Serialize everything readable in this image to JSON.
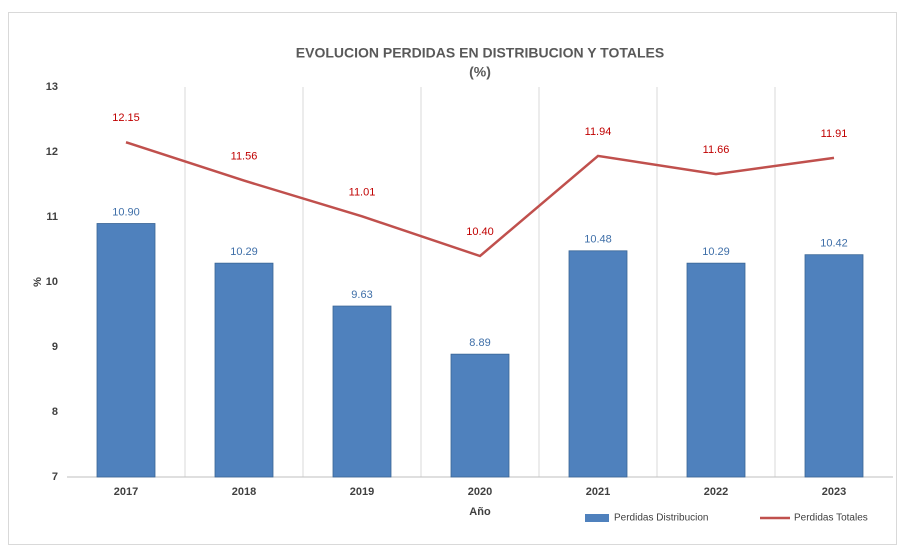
{
  "chart_data": {
    "type": "combo",
    "title": "EVOLUCION PERDIDAS EN DISTRIBUCION Y TOTALES",
    "subtitle": "(%)",
    "x_label": "Año",
    "y_label": "%",
    "categories": [
      "2017",
      "2018",
      "2019",
      "2020",
      "2021",
      "2022",
      "2023"
    ],
    "series": [
      {
        "name": "Perdidas Distribucion",
        "type": "bar",
        "color": "#4f81bd",
        "label_color": "#3f6fa8",
        "values": [
          10.9,
          10.29,
          9.63,
          8.89,
          10.48,
          10.29,
          10.42
        ],
        "value_labels": [
          "10.90",
          "10.29",
          "9.63",
          "8.89",
          "10.48",
          "10.29",
          "10.42"
        ]
      },
      {
        "name": "Perdidas Totales",
        "type": "line",
        "color": "#c0504d",
        "label_color": "#c00000",
        "values": [
          12.15,
          11.56,
          11.01,
          10.4,
          11.94,
          11.66,
          11.91
        ],
        "value_labels": [
          "12.15",
          "11.56",
          "11.01",
          "10.40",
          "11.94",
          "11.66",
          "11.91"
        ]
      }
    ],
    "ylim": [
      7,
      13
    ],
    "yticks": [
      7,
      8,
      9,
      10,
      11,
      12,
      13
    ],
    "legend": "bottom-right"
  }
}
